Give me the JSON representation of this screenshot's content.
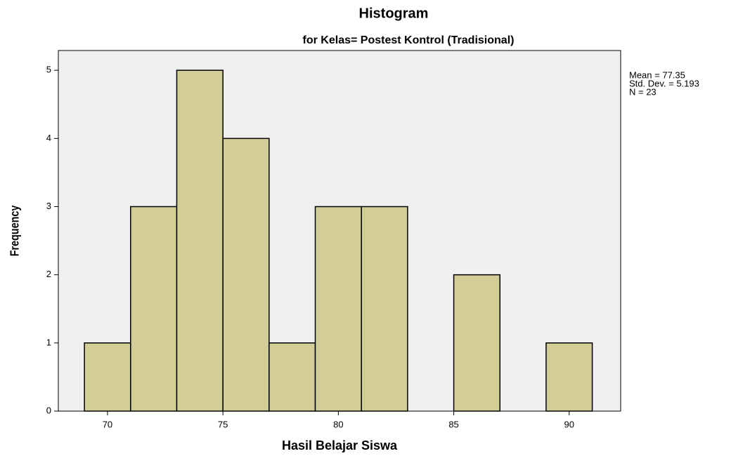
{
  "chart_data": {
    "type": "histogram",
    "title": "Histogram",
    "subtitle": "for Kelas= Postest Kontrol (Tradisional)",
    "xlabel": "Hasil Belajar Siswa",
    "ylabel": "Frequency",
    "bins": [
      69,
      71,
      73,
      75,
      77,
      79,
      81,
      83,
      85,
      87,
      89,
      91
    ],
    "values": [
      1,
      3,
      5,
      4,
      1,
      3,
      3,
      0,
      2,
      0,
      1
    ],
    "color": "#d3ce97",
    "edgecolor": "#000000",
    "background": "#f0f0f0",
    "xlim": [
      67.87,
      92.23
    ],
    "ylim": [
      0,
      5.29
    ],
    "xticks": [
      70,
      75,
      80,
      85,
      90
    ],
    "yticks": [
      0,
      1,
      2,
      3,
      4,
      5
    ],
    "grid": false,
    "annotations": [
      "Mean = 77.35",
      "Std. Dev. = 5.193",
      "N = 23"
    ]
  }
}
